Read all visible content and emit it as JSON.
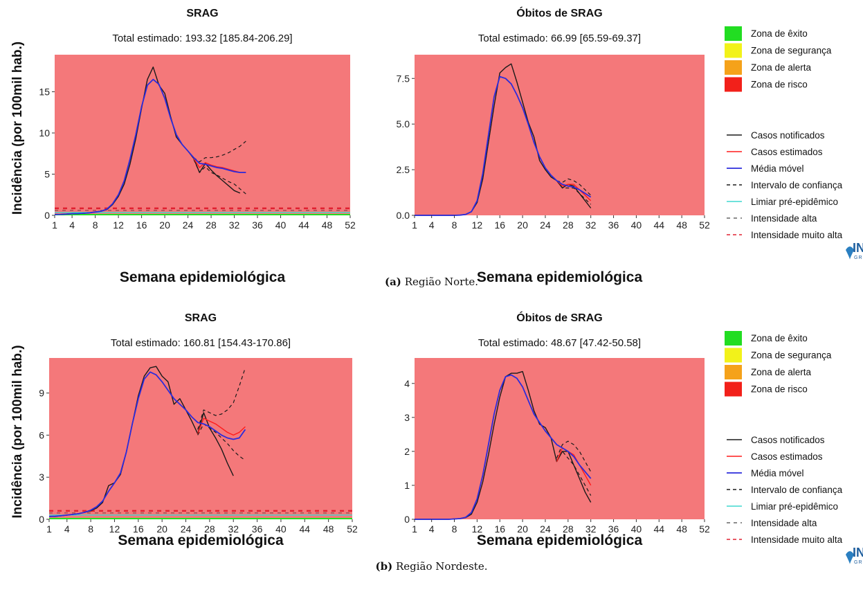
{
  "captions": [
    {
      "label": "(a)",
      "text": "Região Norte."
    },
    {
      "label": "(b)",
      "text": "Região Nordeste."
    }
  ],
  "colors": {
    "plot_background": "#f4787a",
    "casos_notificados": "#1a1a1a",
    "casos_estimados": "#ff1a1a",
    "media_movel": "#2b2bdc",
    "intervalo": "#1a1a1a",
    "limiar": "#3fd9cf",
    "intensidade_alta": "#1a1a1a",
    "intensidade_muito_alta": "#e02030",
    "zona_exito": "#22dd22",
    "zona_seguranca": "#f2f21a",
    "zona_alerta": "#f5a21a",
    "zona_risco": "#f2201a"
  },
  "legends": [
    {
      "zones": [
        "Zona de êxito",
        "Zona de segurança",
        "Zona de alerta",
        "Zona de risco"
      ],
      "lines": [
        "Casos notificados",
        "Casos estimados",
        "Média móvel",
        "Intervalo de confiança",
        "Limiar pré-epidêmico",
        "Intensidade alta",
        "Intensidade muito alta"
      ],
      "logo_text": "INFO GRIPE"
    },
    {
      "zones": [
        "Zona de êxito",
        "Zona de segurança",
        "Zona de alerta",
        "Zona de risco"
      ],
      "lines": [
        "Casos notificados",
        "Casos estimados",
        "Média móvel",
        "Intervalo de confiança",
        "Limiar pré-epidêmico",
        "Intensidade alta",
        "Intensidade muito alta"
      ],
      "logo_text": "INFO GRIPE"
    }
  ],
  "chart_data": [
    {
      "type": "line",
      "id": "norte-srag",
      "title": "SRAG",
      "subtitle": "Total estimado: 193.32 [185.84-206.29]",
      "xlabel": "Semana epidemiológica",
      "ylabel": "Incidência (por 100mil hab.)",
      "xlim": [
        1,
        52
      ],
      "ylim": [
        0,
        19.5
      ],
      "xticks": [
        1,
        4,
        8,
        12,
        16,
        20,
        24,
        28,
        32,
        36,
        40,
        44,
        48,
        52
      ],
      "yticks": [
        0,
        5,
        10,
        15
      ],
      "ytick_labels": [
        "0",
        "5",
        "10",
        "15"
      ],
      "limiar": 0.35,
      "intensidade_alta": 0.6,
      "intensidade_muito_alta": 0.85,
      "series": [
        {
          "name": "Casos notificados",
          "x": [
            1,
            2,
            3,
            4,
            5,
            6,
            7,
            8,
            9,
            10,
            11,
            12,
            13,
            14,
            15,
            16,
            17,
            18,
            19,
            20,
            21,
            22,
            23,
            24,
            25,
            26,
            27,
            28,
            29,
            30,
            31,
            32,
            33
          ],
          "y": [
            0.1,
            0.1,
            0.15,
            0.2,
            0.2,
            0.25,
            0.3,
            0.4,
            0.5,
            0.7,
            1.3,
            2.3,
            3.8,
            6.2,
            9.3,
            13.0,
            16.5,
            18.0,
            15.8,
            14.8,
            12.0,
            9.5,
            8.6,
            7.8,
            6.9,
            5.2,
            6.3,
            5.5,
            4.8,
            4.2,
            3.6,
            3.0,
            2.7
          ]
        },
        {
          "name": "Casos estimados",
          "x": [
            25,
            26,
            27,
            28,
            29,
            30,
            31,
            32,
            33,
            34
          ],
          "y": [
            6.9,
            5.8,
            6.4,
            6.1,
            5.9,
            5.8,
            5.6,
            5.4,
            5.2,
            5.2
          ]
        },
        {
          "name": "Média móvel",
          "x": [
            1,
            2,
            3,
            4,
            5,
            6,
            7,
            8,
            9,
            10,
            11,
            12,
            13,
            14,
            15,
            16,
            17,
            18,
            19,
            20,
            21,
            22,
            23,
            24,
            25,
            26,
            27,
            28,
            29,
            30,
            31,
            32,
            33,
            34
          ],
          "y": [
            0.1,
            0.12,
            0.15,
            0.2,
            0.22,
            0.25,
            0.3,
            0.4,
            0.5,
            0.75,
            1.4,
            2.5,
            4.2,
            6.8,
            9.8,
            13.2,
            15.8,
            16.5,
            15.9,
            14.2,
            11.8,
            9.8,
            8.6,
            7.8,
            7.0,
            6.3,
            6.2,
            6.0,
            5.8,
            5.7,
            5.5,
            5.3,
            5.2,
            5.2
          ]
        },
        {
          "name": "Intervalo de confiança (sup)",
          "x": [
            25,
            26,
            27,
            28,
            29,
            30,
            31,
            32,
            33,
            34
          ],
          "y": [
            7.0,
            6.5,
            7.0,
            7.0,
            7.1,
            7.3,
            7.6,
            8.0,
            8.4,
            9.0
          ]
        },
        {
          "name": "Intervalo de confiança (inf)",
          "x": [
            25,
            26,
            27,
            28,
            29,
            30,
            31,
            32,
            33,
            34
          ],
          "y": [
            6.8,
            5.2,
            5.9,
            5.2,
            4.9,
            4.5,
            4.1,
            3.8,
            3.2,
            2.6
          ]
        }
      ]
    },
    {
      "type": "line",
      "id": "norte-obitos",
      "title": "Óbitos de SRAG",
      "subtitle": "Total estimado: 66.99 [65.59-69.37]",
      "xlabel": "Semana epidemiológica",
      "xlim": [
        1,
        52
      ],
      "ylim": [
        0,
        8.8
      ],
      "xticks": [
        1,
        4,
        8,
        12,
        16,
        20,
        24,
        28,
        32,
        36,
        40,
        44,
        48,
        52
      ],
      "yticks": [
        0,
        2.5,
        5,
        7.5
      ],
      "ytick_labels": [
        "0.0",
        "2.5",
        "5.0",
        "7.5"
      ],
      "series": [
        {
          "name": "Casos notificados",
          "x": [
            1,
            2,
            3,
            4,
            5,
            6,
            7,
            8,
            9,
            10,
            11,
            12,
            13,
            14,
            15,
            16,
            17,
            18,
            19,
            20,
            21,
            22,
            23,
            24,
            25,
            26,
            27,
            28,
            29,
            30,
            31,
            32
          ],
          "y": [
            0,
            0,
            0,
            0,
            0,
            0,
            0,
            0,
            0.01,
            0.05,
            0.2,
            0.7,
            2.0,
            4.0,
            6.0,
            7.8,
            8.1,
            8.3,
            7.3,
            6.2,
            5.1,
            4.3,
            3.0,
            2.5,
            2.1,
            1.9,
            1.5,
            1.7,
            1.6,
            1.2,
            0.8,
            0.4
          ]
        },
        {
          "name": "Casos estimados",
          "x": [
            26,
            27,
            28,
            29,
            30,
            31,
            32
          ],
          "y": [
            1.9,
            1.6,
            1.7,
            1.7,
            1.4,
            1.1,
            0.8
          ]
        },
        {
          "name": "Média móvel",
          "x": [
            1,
            2,
            3,
            4,
            5,
            6,
            7,
            8,
            9,
            10,
            11,
            12,
            13,
            14,
            15,
            16,
            17,
            18,
            19,
            20,
            21,
            22,
            23,
            24,
            25,
            26,
            27,
            28,
            29,
            30,
            31,
            32
          ],
          "y": [
            0,
            0,
            0,
            0,
            0,
            0,
            0,
            0,
            0.01,
            0.05,
            0.2,
            0.8,
            2.3,
            4.4,
            6.5,
            7.6,
            7.5,
            7.2,
            6.6,
            5.9,
            5.0,
            4.0,
            3.2,
            2.6,
            2.2,
            1.9,
            1.7,
            1.6,
            1.55,
            1.4,
            1.2,
            1.0
          ]
        },
        {
          "name": "Intervalo de confiança (sup)",
          "x": [
            26,
            27,
            28,
            29,
            30,
            31,
            32
          ],
          "y": [
            1.9,
            1.8,
            2.0,
            1.9,
            1.7,
            1.4,
            1.1
          ]
        },
        {
          "name": "Intervalo de confiança (inf)",
          "x": [
            26,
            27,
            28,
            29,
            30,
            31,
            32
          ],
          "y": [
            1.9,
            1.5,
            1.5,
            1.5,
            1.2,
            0.9,
            0.6
          ]
        }
      ]
    },
    {
      "type": "line",
      "id": "nordeste-srag",
      "title": "SRAG",
      "subtitle": "Total estimado: 160.81 [154.43-170.86]",
      "xlabel": "Semana epidemiológica",
      "ylabel": "Incidência (por 100mil hab.)",
      "xlim": [
        1,
        52
      ],
      "ylim": [
        0,
        11.5
      ],
      "xticks": [
        1,
        4,
        8,
        12,
        16,
        20,
        24,
        28,
        32,
        36,
        40,
        44,
        48,
        52
      ],
      "yticks": [
        0,
        3,
        6,
        9
      ],
      "ytick_labels": [
        "0",
        "3",
        "6",
        "9"
      ],
      "limiar": 0.3,
      "intensidade_alta": 0.45,
      "intensidade_muito_alta": 0.6,
      "series": [
        {
          "name": "Casos notificados",
          "x": [
            1,
            2,
            3,
            4,
            5,
            6,
            7,
            8,
            9,
            10,
            11,
            12,
            13,
            14,
            15,
            16,
            17,
            18,
            19,
            20,
            21,
            22,
            23,
            24,
            25,
            26,
            27,
            28,
            29,
            30,
            31,
            32
          ],
          "y": [
            0.2,
            0.2,
            0.25,
            0.3,
            0.35,
            0.4,
            0.5,
            0.6,
            0.8,
            1.2,
            2.4,
            2.6,
            3.2,
            4.8,
            6.8,
            8.8,
            10.2,
            10.8,
            10.9,
            10.2,
            9.8,
            8.2,
            8.6,
            7.8,
            7.0,
            6.1,
            7.6,
            6.5,
            5.8,
            5.0,
            4.0,
            3.1
          ]
        },
        {
          "name": "Casos estimados",
          "x": [
            26,
            27,
            28,
            29,
            30,
            31,
            32,
            33,
            34
          ],
          "y": [
            6.1,
            7.2,
            7.0,
            6.8,
            6.5,
            6.2,
            6.0,
            6.2,
            6.6
          ]
        },
        {
          "name": "Média móvel",
          "x": [
            1,
            2,
            3,
            4,
            5,
            6,
            7,
            8,
            9,
            10,
            11,
            12,
            13,
            14,
            15,
            16,
            17,
            18,
            19,
            20,
            21,
            22,
            23,
            24,
            25,
            26,
            27,
            28,
            29,
            30,
            31,
            32,
            33,
            34
          ],
          "y": [
            0.2,
            0.22,
            0.25,
            0.3,
            0.35,
            0.4,
            0.5,
            0.65,
            0.9,
            1.3,
            2.0,
            2.6,
            3.3,
            4.8,
            6.8,
            8.6,
            10.0,
            10.5,
            10.3,
            9.8,
            9.2,
            8.6,
            8.2,
            7.8,
            7.3,
            6.9,
            6.8,
            6.6,
            6.3,
            6.0,
            5.8,
            5.7,
            5.8,
            6.4
          ]
        },
        {
          "name": "Intervalo de confiança (sup)",
          "x": [
            26,
            27,
            28,
            29,
            30,
            31,
            32,
            33,
            34
          ],
          "y": [
            6.4,
            7.8,
            7.6,
            7.4,
            7.5,
            7.8,
            8.3,
            9.5,
            10.8
          ]
        },
        {
          "name": "Intervalo de confiança (inf)",
          "x": [
            26,
            27,
            28,
            29,
            30,
            31,
            32,
            33,
            34
          ],
          "y": [
            6.0,
            6.8,
            6.5,
            6.2,
            5.8,
            5.4,
            4.9,
            4.5,
            4.2
          ]
        }
      ]
    },
    {
      "type": "line",
      "id": "nordeste-obitos",
      "title": "Óbitos de SRAG",
      "subtitle": "Total estimado: 48.67 [47.42-50.58]",
      "xlabel": "Semana epidemiológica",
      "xlim": [
        1,
        52
      ],
      "ylim": [
        0,
        4.75
      ],
      "xticks": [
        1,
        4,
        8,
        12,
        16,
        20,
        24,
        28,
        32,
        36,
        40,
        44,
        48,
        52
      ],
      "yticks": [
        0,
        1,
        2,
        3,
        4
      ],
      "ytick_labels": [
        "0",
        "1",
        "2",
        "3",
        "4"
      ],
      "series": [
        {
          "name": "Casos notificados",
          "x": [
            1,
            2,
            3,
            4,
            5,
            6,
            7,
            8,
            9,
            10,
            11,
            12,
            13,
            14,
            15,
            16,
            17,
            18,
            19,
            20,
            21,
            22,
            23,
            24,
            25,
            26,
            27,
            28,
            29,
            30,
            31,
            32
          ],
          "y": [
            0,
            0,
            0,
            0,
            0,
            0,
            0,
            0.01,
            0.02,
            0.05,
            0.15,
            0.5,
            1.1,
            1.9,
            2.8,
            3.6,
            4.2,
            4.3,
            4.3,
            4.35,
            3.8,
            3.2,
            2.8,
            2.7,
            2.4,
            1.7,
            2.0,
            2.0,
            1.6,
            1.2,
            0.8,
            0.5
          ]
        },
        {
          "name": "Casos estimados",
          "x": [
            26,
            27,
            28,
            29,
            30,
            31,
            32
          ],
          "y": [
            1.7,
            2.1,
            2.0,
            1.9,
            1.6,
            1.3,
            1.0
          ]
        },
        {
          "name": "Média móvel",
          "x": [
            1,
            2,
            3,
            4,
            5,
            6,
            7,
            8,
            9,
            10,
            11,
            12,
            13,
            14,
            15,
            16,
            17,
            18,
            19,
            20,
            21,
            22,
            23,
            24,
            25,
            26,
            27,
            28,
            29,
            30,
            31,
            32
          ],
          "y": [
            0,
            0,
            0,
            0,
            0,
            0,
            0,
            0.01,
            0.02,
            0.06,
            0.2,
            0.6,
            1.3,
            2.2,
            3.1,
            3.8,
            4.2,
            4.25,
            4.15,
            3.9,
            3.5,
            3.1,
            2.85,
            2.6,
            2.4,
            2.2,
            2.1,
            2.0,
            1.85,
            1.6,
            1.4,
            1.2
          ]
        },
        {
          "name": "Intervalo de confiança (sup)",
          "x": [
            26,
            27,
            28,
            29,
            30,
            31,
            32
          ],
          "y": [
            1.8,
            2.2,
            2.3,
            2.2,
            2.0,
            1.7,
            1.4
          ]
        },
        {
          "name": "Intervalo de confiança (inf)",
          "x": [
            26,
            27,
            28,
            29,
            30,
            31,
            32
          ],
          "y": [
            1.7,
            2.0,
            1.8,
            1.6,
            1.3,
            1.0,
            0.7
          ]
        }
      ]
    }
  ]
}
